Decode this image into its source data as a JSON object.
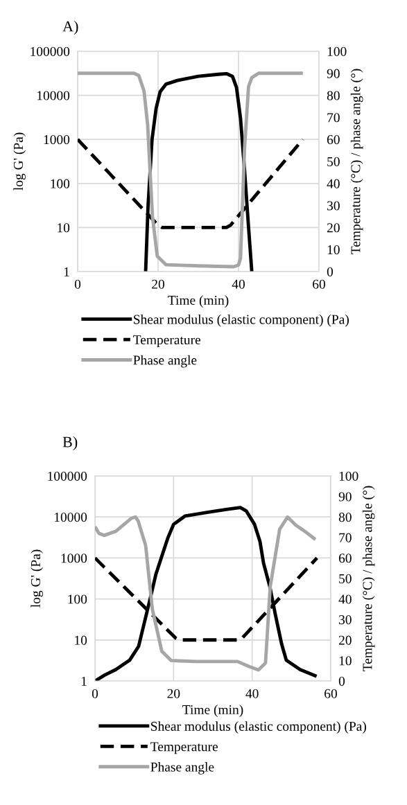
{
  "chart_data": [
    {
      "type": "line",
      "title": "A)",
      "xlabel": "Time (min)",
      "ylabel": "log G' (Pa)",
      "y2label": "Temperature (°C) / phase angle (°)",
      "log": true,
      "grid": true,
      "legend": "bottom",
      "marker": "none",
      "xlim": [
        0,
        60
      ],
      "xticks": [
        0,
        20,
        40,
        60
      ],
      "ylim": [
        1,
        100000
      ],
      "yticks": [
        1,
        10,
        100,
        1000,
        10000,
        100000
      ],
      "y2lim": [
        0,
        100
      ],
      "y2ticks": [
        0,
        10,
        20,
        30,
        40,
        50,
        60,
        70,
        80,
        90,
        100
      ],
      "series": [
        {
          "name": "Shear modulus (elastic component) (Pa)",
          "color": "#000000",
          "line_style": "solid",
          "x": [
            16.9,
            17.5,
            18.5,
            19.5,
            20.5,
            22,
            25,
            30,
            35,
            37,
            38.5,
            39.5,
            40.5,
            41.5,
            42.5,
            43.3
          ],
          "values": [
            1,
            30,
            1000,
            5000,
            12000,
            18000,
            22000,
            27000,
            30000,
            31000,
            27000,
            15000,
            3000,
            200,
            10,
            1
          ]
        },
        {
          "name": "Temperature",
          "color": "#000000",
          "line_style": "dashed",
          "axis": "y2",
          "x": [
            0,
            20,
            21,
            37,
            38,
            56
          ],
          "values": [
            60,
            21,
            20,
            20,
            21,
            60
          ]
        },
        {
          "name": "Phase angle",
          "color": "#a6a6a6",
          "line_style": "solid",
          "axis": "y2",
          "x": [
            0,
            14,
            15.2,
            16.5,
            17.4,
            18.6,
            19.8,
            22,
            30,
            38.8,
            40,
            40.5,
            41.5,
            42.5,
            43.3,
            45,
            56
          ],
          "values": [
            90,
            90,
            89,
            82,
            66.7,
            25,
            7,
            3.1,
            2.6,
            2.2,
            3,
            6,
            56,
            84,
            88,
            90,
            90
          ]
        }
      ]
    },
    {
      "type": "line",
      "title": "B)",
      "xlabel": "Time (min)",
      "ylabel": "log G' (Pa)",
      "y2label": "Temperature (°C) / phase angle (°)",
      "log": true,
      "grid": true,
      "legend": "bottom",
      "marker": "none",
      "xlim": [
        0,
        60
      ],
      "xticks": [
        0,
        20,
        40,
        60
      ],
      "ylim": [
        1,
        100000
      ],
      "yticks": [
        1,
        10,
        100,
        1000,
        10000,
        100000
      ],
      "y2lim": [
        0,
        100
      ],
      "y2ticks": [
        0,
        10,
        20,
        30,
        40,
        50,
        60,
        70,
        80,
        90,
        100
      ],
      "series": [
        {
          "name": "Shear modulus (elastic component) (Pa)",
          "color": "#000000",
          "line_style": "solid",
          "x": [
            0,
            2.5,
            5.3,
            8.8,
            11.1,
            12.5,
            14.1,
            15.5,
            17,
            18.5,
            20,
            22.9,
            28.8,
            34,
            37,
            38.5,
            40.6,
            42,
            42.9,
            44.5,
            45.9,
            47.5,
            48.7,
            52.2,
            56.4
          ],
          "values": [
            1,
            1.4,
            1.9,
            3.2,
            7,
            25,
            107,
            400,
            1100,
            3000,
            6600,
            10500,
            13000,
            15500,
            17000,
            14000,
            6600,
            2500,
            750,
            200,
            42,
            8,
            3.2,
            1.9,
            1.3
          ]
        },
        {
          "name": "Temperature",
          "color": "#000000",
          "line_style": "dashed",
          "axis": "y2",
          "x": [
            0,
            20.5,
            21.5,
            36.5,
            37.5,
            56.5
          ],
          "values": [
            60,
            21,
            20,
            20,
            21,
            60
          ]
        },
        {
          "name": "Phase angle",
          "color": "#a6a6a6",
          "line_style": "solid",
          "axis": "y2",
          "x": [
            0,
            1,
            2.3,
            5.3,
            9.3,
            10.3,
            11,
            12.9,
            14.6,
            17,
            19.4,
            25.7,
            36.3,
            39.3,
            41.6,
            43.4,
            44.6,
            47,
            49,
            51.1,
            53.4,
            56.1
          ],
          "values": [
            75.3,
            72,
            71,
            73,
            79.4,
            80,
            78,
            66,
            35,
            14.5,
            10,
            9.5,
            9.5,
            7,
            5.4,
            8.8,
            46,
            74,
            80,
            76,
            73,
            69
          ]
        }
      ]
    }
  ]
}
